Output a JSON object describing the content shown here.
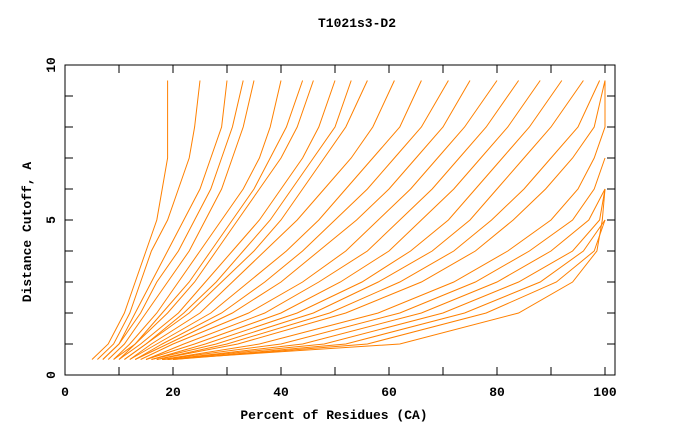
{
  "chart_data": {
    "type": "line",
    "title": "T1021s3-D2",
    "xlabel": "Percent of Residues (CA)",
    "ylabel": "Distance Cutoff, A",
    "xlim": [
      0,
      100
    ],
    "ylim": [
      0,
      10
    ],
    "x_ticks": [
      0,
      20,
      40,
      60,
      80,
      100
    ],
    "y_ticks": [
      0,
      5,
      10
    ],
    "grid": false,
    "line_color": "#ff8000",
    "y_levels": [
      0.5,
      1,
      2,
      3,
      4,
      5,
      6,
      7,
      8,
      9.5
    ],
    "series_x_at_levels": [
      [
        5,
        8,
        11,
        13,
        15,
        17,
        18,
        19,
        19,
        19
      ],
      [
        6,
        9,
        12,
        14,
        16,
        19,
        21,
        23,
        24,
        25
      ],
      [
        7,
        10,
        13,
        16,
        19,
        22,
        25,
        27,
        29,
        30
      ],
      [
        7,
        10,
        14,
        17,
        21,
        24,
        27,
        29,
        31,
        33
      ],
      [
        8,
        11,
        15,
        19,
        23,
        26,
        29,
        31,
        33,
        35
      ],
      [
        9,
        12,
        17,
        21,
        25,
        29,
        33,
        36,
        38,
        40
      ],
      [
        9,
        13,
        18,
        23,
        27,
        31,
        35,
        38,
        41,
        44
      ],
      [
        10,
        13,
        19,
        24,
        28,
        32,
        36,
        40,
        43,
        46
      ],
      [
        10,
        14,
        21,
        26,
        31,
        36,
        40,
        44,
        47,
        50
      ],
      [
        11,
        15,
        22,
        28,
        33,
        38,
        42,
        46,
        50,
        53
      ],
      [
        11,
        15,
        23,
        29,
        35,
        40,
        44,
        48,
        52,
        56
      ],
      [
        12,
        16,
        25,
        31,
        37,
        43,
        48,
        53,
        57,
        61
      ],
      [
        12,
        17,
        27,
        34,
        41,
        47,
        52,
        57,
        62,
        66
      ],
      [
        13,
        18,
        29,
        37,
        44,
        50,
        56,
        61,
        66,
        71
      ],
      [
        13,
        19,
        31,
        40,
        47,
        54,
        60,
        65,
        70,
        75
      ],
      [
        14,
        20,
        34,
        44,
        52,
        58,
        64,
        69,
        74,
        80
      ],
      [
        15,
        22,
        37,
        47,
        56,
        62,
        68,
        73,
        78,
        84
      ],
      [
        15,
        24,
        40,
        51,
        60,
        66,
        72,
        77,
        82,
        88
      ],
      [
        16,
        26,
        43,
        55,
        64,
        71,
        76,
        81,
        86,
        92
      ],
      [
        16,
        28,
        46,
        58,
        68,
        75,
        80,
        85,
        90,
        96
      ],
      [
        17,
        30,
        49,
        62,
        72,
        79,
        85,
        90,
        95,
        99
      ],
      [
        17,
        32,
        52,
        66,
        76,
        83,
        89,
        94,
        98,
        100
      ],
      [
        18,
        36,
        58,
        72,
        82,
        90,
        95,
        98,
        100,
        100
      ],
      [
        18,
        40,
        62,
        76,
        86,
        94,
        98,
        100
      ],
      [
        19,
        44,
        66,
        80,
        90,
        97,
        100
      ],
      [
        19,
        48,
        70,
        84,
        94,
        99,
        100
      ],
      [
        20,
        52,
        74,
        88,
        96,
        100
      ],
      [
        20,
        56,
        78,
        91,
        98,
        100
      ],
      [
        18,
        62,
        84,
        94,
        98.5,
        99.5,
        100
      ]
    ]
  }
}
